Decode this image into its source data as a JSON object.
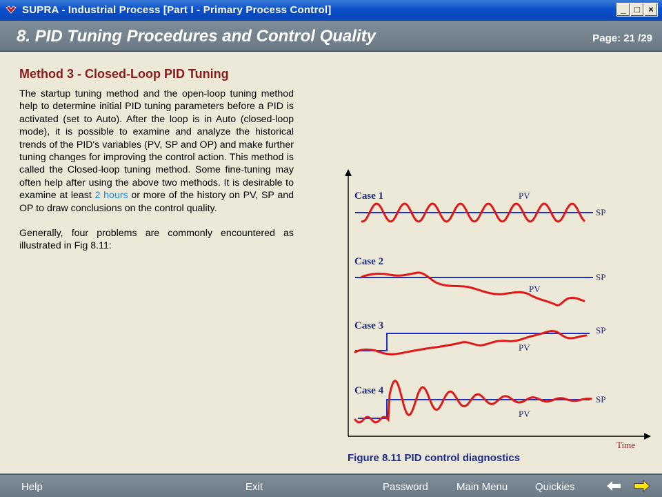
{
  "window": {
    "title": "SUPRA - Industrial Process [Part I - Primary Process Control]",
    "buttons": [
      "_",
      "□",
      "×"
    ]
  },
  "header": {
    "chapter": "8. PID Tuning Procedures and Control Quality",
    "page": "Page:  21 /29"
  },
  "content": {
    "method_title": "Method 3 - Closed-Loop PID Tuning",
    "para1_a": "The startup tuning method and the open-loop tuning method help to determine initial PID tuning parameters before a PID is activated (set to Auto).  After the loop is in Auto (closed-loop mode), it is possible to examine and analyze the historical trends of the PID's variables (PV, SP and OP) and make further tuning changes for improving the control action.  This method is called the Closed-loop tuning method.   Some fine-tuning may often help after using the above two methods.   It is desirable to examine at least ",
    "para1_link": "2  hours",
    "para1_b": " or more of the history on PV, SP and OP to draw conclusions on the control quality.",
    "para2": "Generally, four problems are commonly encountered as illustrated in Fig 8.11:"
  },
  "figure": {
    "caption": "Figure 8.11 PID control diagnostics",
    "axis_label": "Time",
    "cases": [
      {
        "label": "Case 1",
        "pv": "PV",
        "sp": "SP"
      },
      {
        "label": "Case 2",
        "pv": "PV",
        "sp": "SP"
      },
      {
        "label": "Case 3",
        "pv": "PV",
        "sp": "SP"
      },
      {
        "label": "Case 4",
        "pv": "PV",
        "sp": "SP"
      }
    ],
    "colors": {
      "sp": "#1f2fbf",
      "pv": "#e01818",
      "label": "#1a2a8a",
      "axis_label": "#8b1a1a"
    }
  },
  "bottom_nav": {
    "help": "Help",
    "exit": "Exit",
    "password": "Password",
    "main_menu": "Main Menu",
    "quickies": "Quickies"
  }
}
